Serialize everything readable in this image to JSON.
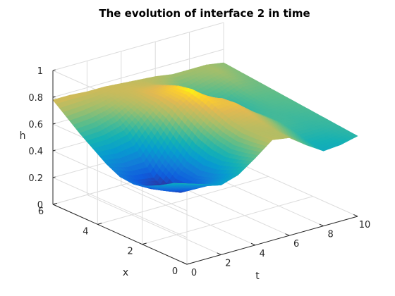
{
  "chart_data": {
    "type": "surface",
    "title": "The evolution of interface 2 in time",
    "xlabel": "t",
    "ylabel": "x",
    "zlabel": "h",
    "xlim": [
      0,
      10
    ],
    "ylim": [
      0,
      6
    ],
    "zlim": [
      0,
      1
    ],
    "x_ticks": [
      "0",
      "2",
      "4",
      "6",
      "8",
      "10"
    ],
    "y_ticks": [
      "0",
      "2",
      "4",
      "6"
    ],
    "z_ticks": [
      "0",
      "0.2",
      "0.4",
      "0.6",
      "0.8",
      "1"
    ],
    "grid": true,
    "colormap": "parula",
    "t": [
      0,
      1,
      2,
      3,
      4,
      5,
      6,
      7,
      8,
      9,
      10
    ],
    "x": [
      0,
      0.6,
      1.2,
      1.8,
      2.4,
      3,
      3.6,
      4.2,
      4.8,
      5.4,
      6
    ],
    "h": [
      [
        0.6,
        0.56,
        0.5,
        0.45,
        0.42,
        0.43,
        0.48,
        0.55,
        0.62,
        0.7,
        0.78
      ],
      [
        0.56,
        0.52,
        0.45,
        0.38,
        0.35,
        0.37,
        0.45,
        0.55,
        0.63,
        0.71,
        0.78
      ],
      [
        0.52,
        0.47,
        0.4,
        0.33,
        0.3,
        0.35,
        0.46,
        0.58,
        0.67,
        0.73,
        0.77
      ],
      [
        0.56,
        0.5,
        0.45,
        0.42,
        0.44,
        0.52,
        0.62,
        0.7,
        0.74,
        0.76,
        0.77
      ],
      [
        0.65,
        0.62,
        0.6,
        0.62,
        0.66,
        0.72,
        0.78,
        0.8,
        0.79,
        0.77,
        0.76
      ],
      [
        0.75,
        0.74,
        0.74,
        0.76,
        0.8,
        0.84,
        0.86,
        0.84,
        0.8,
        0.76,
        0.75
      ],
      [
        0.73,
        0.74,
        0.76,
        0.79,
        0.81,
        0.8,
        0.76,
        0.72,
        0.7,
        0.72,
        0.74
      ],
      [
        0.64,
        0.66,
        0.69,
        0.71,
        0.71,
        0.68,
        0.64,
        0.62,
        0.63,
        0.67,
        0.72
      ],
      [
        0.56,
        0.58,
        0.61,
        0.63,
        0.63,
        0.62,
        0.61,
        0.62,
        0.66,
        0.7,
        0.72
      ],
      [
        0.57,
        0.59,
        0.61,
        0.62,
        0.63,
        0.64,
        0.65,
        0.67,
        0.7,
        0.72,
        0.72
      ],
      [
        0.6,
        0.61,
        0.62,
        0.63,
        0.64,
        0.65,
        0.66,
        0.67,
        0.68,
        0.69,
        0.7
      ]
    ]
  }
}
